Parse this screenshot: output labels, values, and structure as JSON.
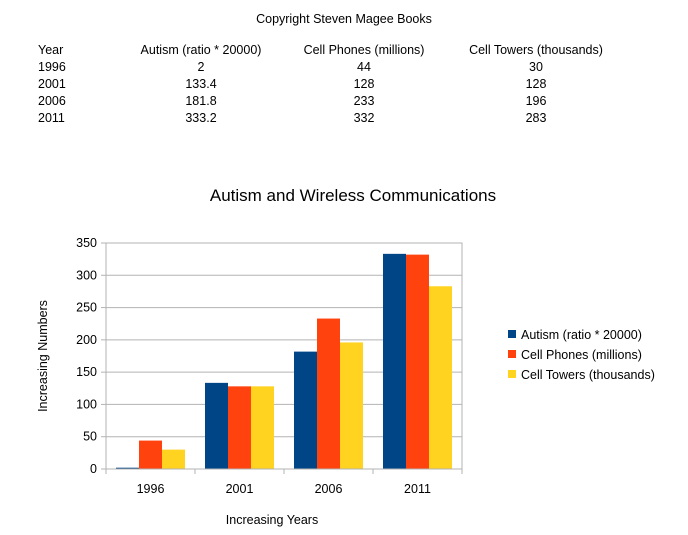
{
  "copyright": "Copyright Steven Magee Books",
  "table": {
    "headers": [
      "Year",
      "Autism (ratio * 20000)",
      "Cell Phones (millions)",
      "Cell Towers (thousands)"
    ],
    "rows": [
      [
        "1996",
        "2",
        "44",
        "30"
      ],
      [
        "2001",
        "133.4",
        "128",
        "128"
      ],
      [
        "2006",
        "181.8",
        "233",
        "196"
      ],
      [
        "2011",
        "333.2",
        "332",
        "283"
      ]
    ]
  },
  "chart_data": {
    "type": "bar",
    "title": "Autism and Wireless Communications",
    "xlabel": "Increasing Years",
    "ylabel": "Increasing Numbers",
    "categories": [
      "1996",
      "2001",
      "2006",
      "2011"
    ],
    "ylim": [
      0,
      350
    ],
    "yticks": [
      0,
      50,
      100,
      150,
      200,
      250,
      300,
      350
    ],
    "grid": true,
    "legend": "right",
    "series": [
      {
        "name": "Autism (ratio * 20000)",
        "values": [
          2,
          133.4,
          181.8,
          333.2
        ],
        "color": "#004586"
      },
      {
        "name": "Cell Phones (millions)",
        "values": [
          44,
          128,
          233,
          332
        ],
        "color": "#ff420e"
      },
      {
        "name": "Cell Towers (thousands)",
        "values": [
          30,
          128,
          196,
          283
        ],
        "color": "#ffd320"
      }
    ]
  }
}
